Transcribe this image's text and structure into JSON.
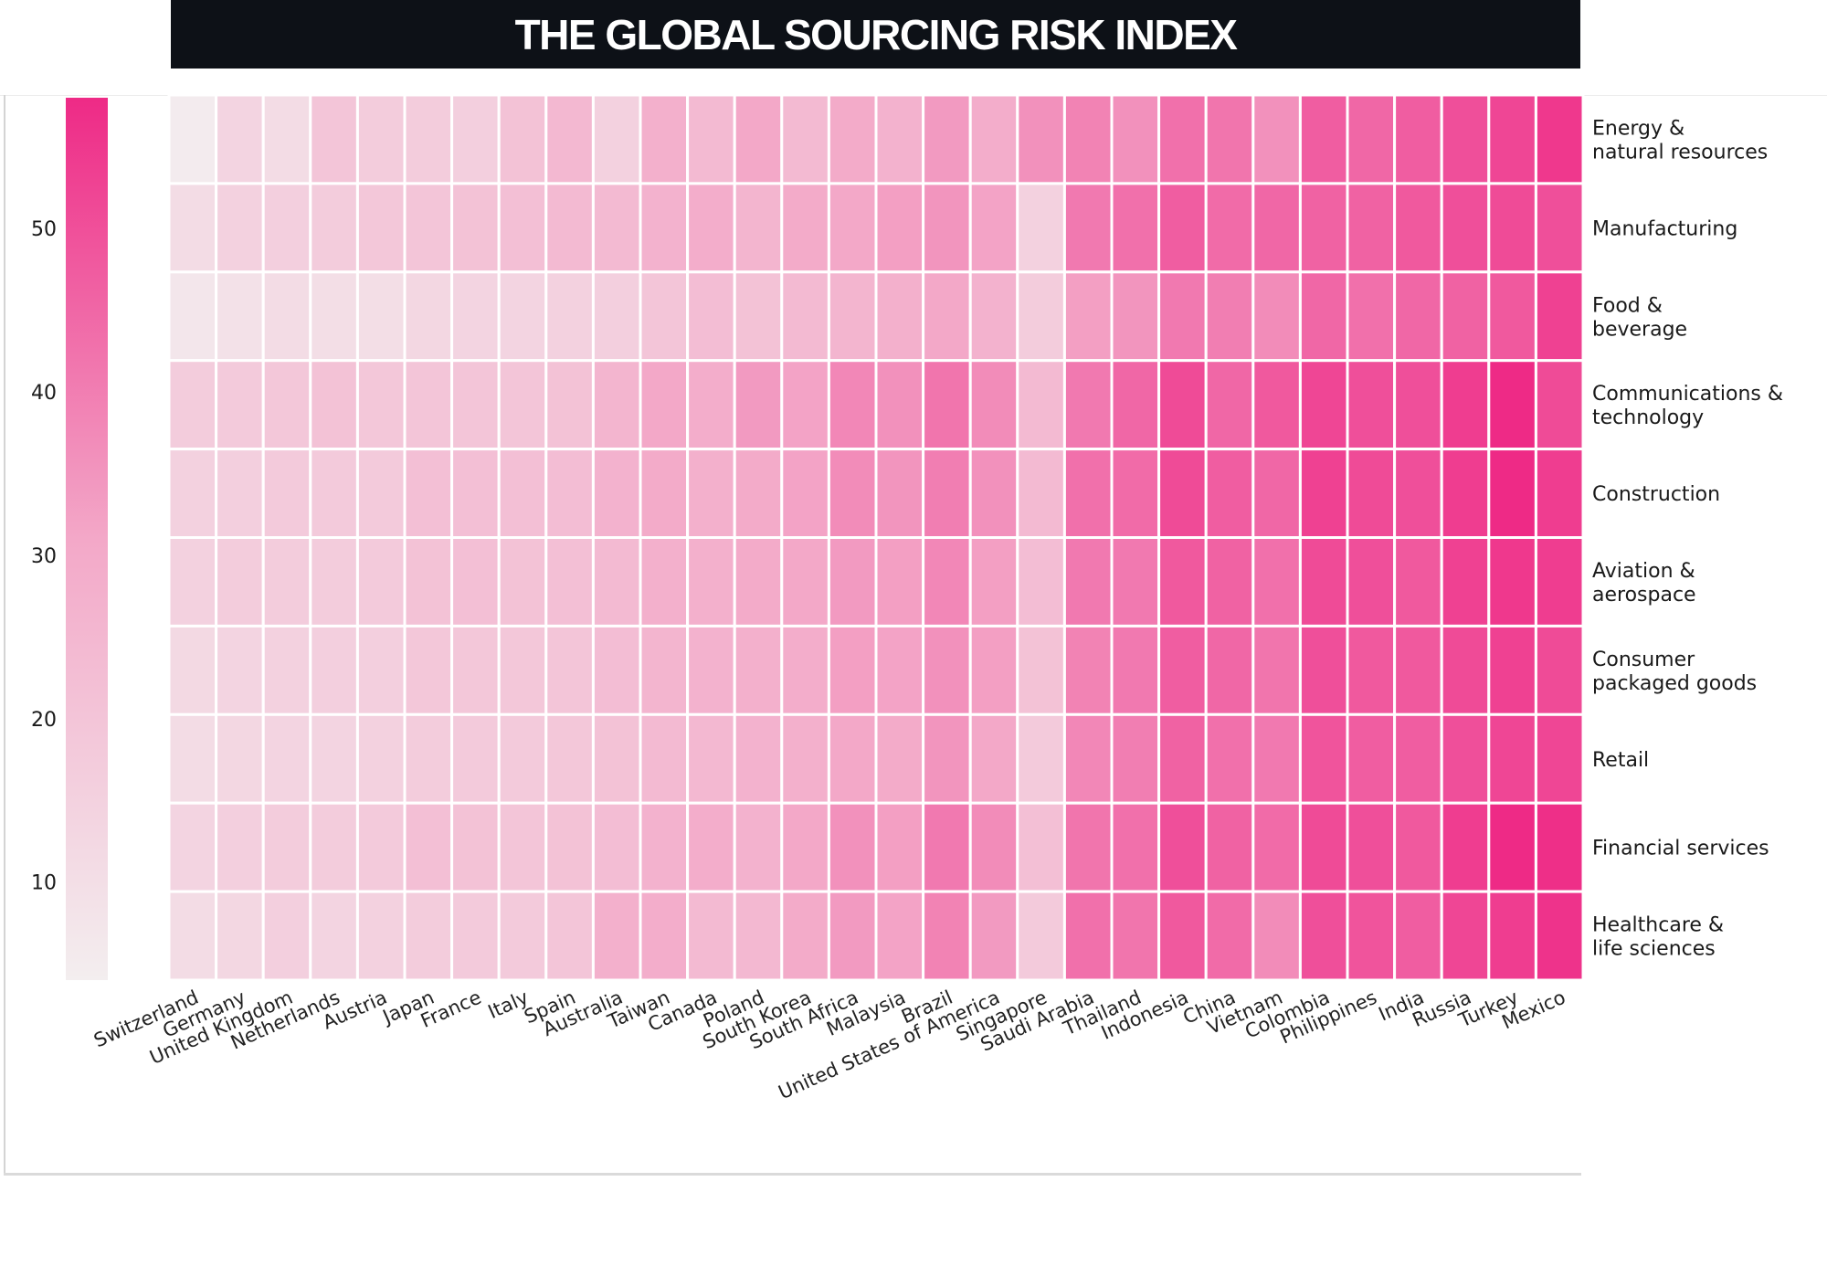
{
  "title": "THE GLOBAL SOURCING RISK INDEX",
  "chart_data": {
    "type": "heatmap",
    "title": "THE GLOBAL SOURCING RISK INDEX",
    "x_categories": [
      "Switzerland",
      "Germany",
      "United Kingdom",
      "Netherlands",
      "Austria",
      "Japan",
      "France",
      "Italy",
      "Spain",
      "Australia",
      "Taiwan",
      "Canada",
      "Poland",
      "South Korea",
      "South Africa",
      "Malaysia",
      "Brazil",
      "United States of America",
      "Singapore",
      "Saudi Arabia",
      "Thailand",
      "Indonesia",
      "China",
      "Vietnam",
      "Colombia",
      "Philippines",
      "India",
      "Russia",
      "Turkey",
      "Mexico"
    ],
    "y_categories": [
      "Energy &\nnatural resources",
      "Manufacturing",
      "Food &\nbeverage",
      "Communications &\ntechnology",
      "Construction",
      "Aviation &\naerospace",
      "Consumer\npackaged goods",
      "Retail",
      "Financial services",
      "Healthcare &\nlife sciences"
    ],
    "values": [
      [
        5,
        14,
        11,
        20,
        17,
        17,
        16,
        21,
        25,
        15,
        28,
        24,
        31,
        24,
        30,
        27,
        34,
        29,
        36,
        39,
        36,
        43,
        42,
        36,
        47,
        45,
        47,
        50,
        52,
        55
      ],
      [
        11,
        15,
        16,
        17,
        19,
        20,
        21,
        22,
        24,
        24,
        27,
        29,
        26,
        30,
        31,
        33,
        35,
        32,
        15,
        41,
        43,
        47,
        44,
        45,
        46,
        46,
        48,
        50,
        51,
        50
      ],
      [
        7,
        9,
        11,
        10,
        10,
        13,
        14,
        14,
        15,
        16,
        20,
        23,
        21,
        24,
        26,
        28,
        31,
        27,
        17,
        33,
        35,
        41,
        40,
        37,
        45,
        43,
        45,
        46,
        48,
        53
      ],
      [
        17,
        18,
        19,
        21,
        19,
        20,
        20,
        20,
        21,
        26,
        31,
        29,
        34,
        32,
        38,
        36,
        42,
        37,
        24,
        41,
        45,
        51,
        45,
        48,
        52,
        50,
        50,
        54,
        58,
        51
      ],
      [
        15,
        16,
        18,
        18,
        18,
        22,
        22,
        22,
        23,
        27,
        30,
        28,
        30,
        32,
        37,
        35,
        40,
        36,
        24,
        43,
        44,
        51,
        47,
        45,
        53,
        51,
        50,
        54,
        59,
        54
      ],
      [
        15,
        17,
        17,
        17,
        18,
        21,
        22,
        21,
        22,
        24,
        28,
        28,
        30,
        31,
        34,
        33,
        38,
        33,
        23,
        41,
        41,
        48,
        46,
        43,
        51,
        50,
        48,
        53,
        55,
        54
      ],
      [
        12,
        14,
        15,
        16,
        16,
        19,
        19,
        19,
        20,
        23,
        26,
        27,
        28,
        29,
        33,
        32,
        36,
        33,
        21,
        39,
        41,
        47,
        45,
        42,
        50,
        48,
        48,
        51,
        53,
        51
      ],
      [
        11,
        13,
        14,
        14,
        15,
        17,
        18,
        18,
        19,
        21,
        24,
        25,
        27,
        28,
        31,
        30,
        35,
        31,
        18,
        38,
        40,
        46,
        43,
        41,
        49,
        47,
        47,
        50,
        52,
        52
      ],
      [
        14,
        16,
        17,
        17,
        18,
        22,
        21,
        20,
        21,
        23,
        27,
        29,
        27,
        31,
        36,
        33,
        41,
        37,
        22,
        42,
        43,
        50,
        46,
        44,
        51,
        50,
        48,
        54,
        58,
        57
      ],
      [
        11,
        13,
        16,
        14,
        15,
        17,
        18,
        18,
        20,
        28,
        29,
        24,
        25,
        30,
        34,
        32,
        39,
        34,
        18,
        43,
        42,
        48,
        44,
        37,
        50,
        49,
        47,
        52,
        54,
        56
      ]
    ],
    "colorbar": {
      "ticks": [
        10,
        20,
        30,
        40,
        50
      ],
      "range": [
        4,
        58
      ]
    },
    "colors": {
      "low": "#f3eeef",
      "mid": "#f3a8c8",
      "high": "#ee2a86"
    }
  }
}
